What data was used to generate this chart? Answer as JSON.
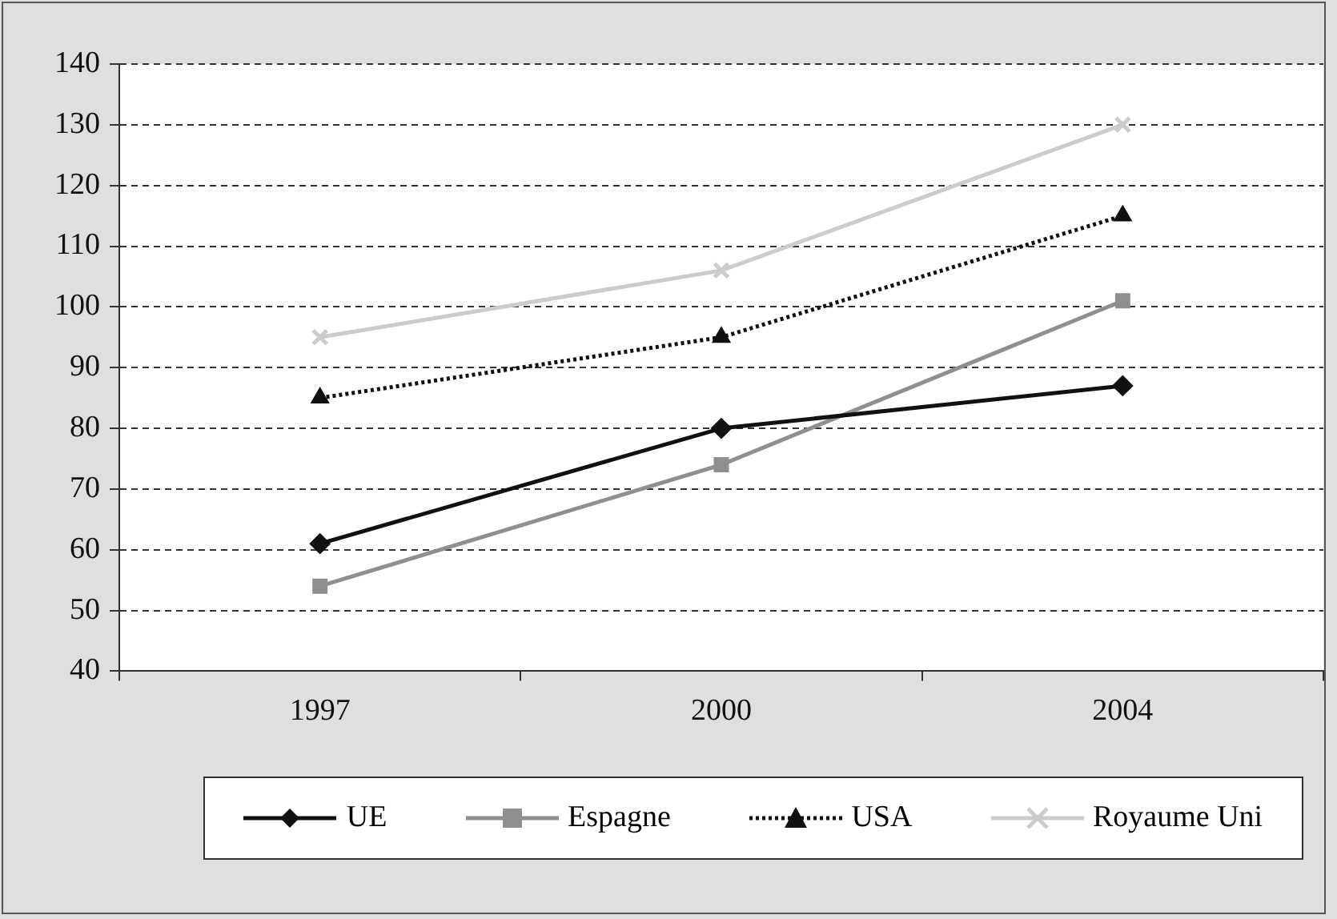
{
  "chart_data": {
    "type": "line",
    "categories": [
      "1997",
      "2000",
      "2004"
    ],
    "series": [
      {
        "name": "UE",
        "color": "#111111",
        "values": [
          61,
          80,
          87
        ],
        "marker": "diamond",
        "line_style": "solid"
      },
      {
        "name": "Espagne",
        "color": "#8f8f8f",
        "values": [
          54,
          74,
          101
        ],
        "marker": "square",
        "line_style": "solid"
      },
      {
        "name": "USA",
        "color": "#111111",
        "values": [
          85,
          95,
          115
        ],
        "marker": "triangle",
        "line_style": "dotted"
      },
      {
        "name": "Royaume Uni",
        "color": "#cccccc",
        "values": [
          95,
          106,
          130
        ],
        "marker": "cross",
        "line_style": "solid"
      }
    ],
    "ylim": [
      40,
      140
    ],
    "yticks": [
      40,
      50,
      60,
      70,
      80,
      90,
      100,
      110,
      120,
      130,
      140
    ],
    "grid": "y",
    "legend": "bottom"
  }
}
